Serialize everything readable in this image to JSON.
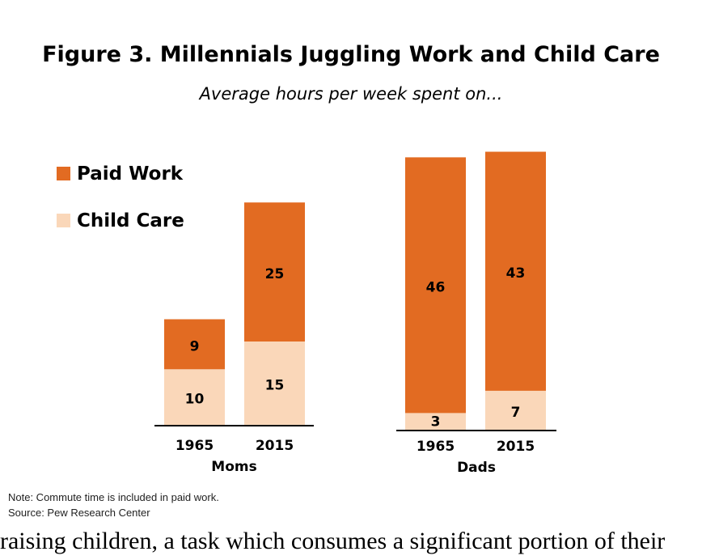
{
  "chart_data": {
    "type": "bar",
    "stacked": true,
    "title": "Figure 3. Millennials Juggling Work and Child Care",
    "subtitle": "Average hours per week spent on...",
    "groups": [
      {
        "label": "Moms",
        "categories": [
          "1965",
          "2015"
        ],
        "series": [
          {
            "name": "Child Care",
            "values": [
              10,
              15
            ]
          },
          {
            "name": "Paid Work",
            "values": [
              9,
              25
            ]
          }
        ]
      },
      {
        "label": "Dads",
        "categories": [
          "1965",
          "2015"
        ],
        "series": [
          {
            "name": "Child Care",
            "values": [
              3,
              7
            ]
          },
          {
            "name": "Paid Work",
            "values": [
              46,
              43
            ]
          }
        ]
      }
    ],
    "legend": {
      "placement": "top-left",
      "entries": [
        {
          "name": "Paid Work",
          "color": "#E26B22"
        },
        {
          "name": "Child Care",
          "color": "#FAD7B9"
        }
      ]
    },
    "colors": {
      "Paid Work": "#E26B22",
      "Child Care": "#FAD7B9"
    },
    "grid": false,
    "ylim": [
      0,
      50
    ]
  },
  "note": "Note: Commute time is included in paid work.",
  "source": "Source: Pew Research Center",
  "bottom_text": "raising children, a task which consumes a significant portion of their"
}
